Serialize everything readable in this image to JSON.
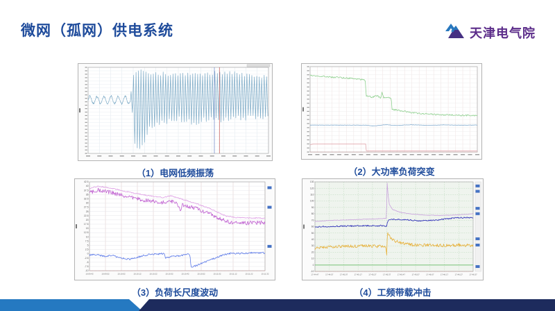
{
  "slide": {
    "title": "微网（孤网）供电系统",
    "title_color": "#1e4b9b",
    "logo": {
      "text": "天津电气院",
      "text_color": "#5c2d8a",
      "icon": "mountain-logo-icon",
      "icon_top_color": "#2878be",
      "icon_bottom_color": "#463083"
    },
    "footer": {
      "light_color": "#2579c1",
      "dark_color": "#1d2b5d"
    }
  },
  "figures": [
    {
      "caption": "（1）电网低频振荡"
    },
    {
      "caption": "（2）大功率负荷突变"
    },
    {
      "caption": "（3）负荷长尺度波动"
    },
    {
      "caption": "（4）工频带载冲击"
    }
  ],
  "chart_data": [
    {
      "type": "line",
      "title": "电网低频振荡",
      "ylim": [
        0,
        100
      ],
      "plot_bg": "#ffffff",
      "grid": {
        "v": 17,
        "h": 26,
        "vcolor": "#dfe7ee",
        "hcolor": "#e9eef3"
      },
      "cursors": [
        {
          "x": 0.7,
          "color": "#6b84c8"
        },
        {
          "x": 0.728,
          "color": "#c0504d"
        }
      ],
      "corner_tab": true,
      "series": [
        {
          "name": "grid-frequency-waveform",
          "color": "#79a8c5",
          "mode": "osc",
          "pre": {
            "until": 0.235,
            "center": 62,
            "amp": 5,
            "cycles": 6
          },
          "env_top": [
            [
              0.235,
              70
            ],
            [
              0.245,
              88
            ],
            [
              0.26,
              93
            ],
            [
              0.28,
              96
            ],
            [
              0.32,
              93
            ],
            [
              0.45,
              92
            ],
            [
              0.6,
              91
            ],
            [
              0.75,
              94
            ],
            [
              0.9,
              91
            ],
            [
              1,
              89
            ]
          ],
          "env_bot": [
            [
              0.235,
              45
            ],
            [
              0.245,
              18
            ],
            [
              0.26,
              3
            ],
            [
              0.285,
              6
            ],
            [
              0.305,
              14
            ],
            [
              0.325,
              30
            ],
            [
              0.36,
              34
            ],
            [
              0.42,
              37
            ],
            [
              0.5,
              40
            ],
            [
              0.58,
              36
            ],
            [
              0.66,
              41
            ],
            [
              0.74,
              38
            ],
            [
              0.84,
              41
            ],
            [
              1,
              44
            ]
          ],
          "cycles": 56
        }
      ]
    },
    {
      "type": "line",
      "title": "大功率负荷突变",
      "ylim": [
        0,
        100
      ],
      "plot_bg": "#ffffff",
      "grid": {
        "v": 24,
        "h": 22,
        "vcolor": "#efe0e0",
        "hcolor": "#ececec"
      },
      "baseline_color": "#cc8f8f",
      "series": [
        {
          "name": "generator-power",
          "color": "#8fd08f",
          "mode": "noisy",
          "noise": 0.9,
          "points": [
            [
              0,
              90
            ],
            [
              0.06,
              89
            ],
            [
              0.12,
              88
            ],
            [
              0.2,
              87
            ],
            [
              0.27,
              86
            ],
            [
              0.33,
              84
            ],
            [
              0.335,
              66
            ],
            [
              0.37,
              64
            ],
            [
              0.4,
              66
            ],
            [
              0.425,
              63
            ],
            [
              0.43,
              70
            ],
            [
              0.44,
              64
            ],
            [
              0.485,
              63
            ],
            [
              0.49,
              50
            ],
            [
              0.55,
              48
            ],
            [
              0.62,
              46
            ],
            [
              0.7,
              44.5
            ],
            [
              0.8,
              43.5
            ],
            [
              0.9,
              43
            ],
            [
              1,
              42.5
            ]
          ]
        },
        {
          "name": "frequency",
          "color": "#86aed0",
          "mode": "noisy",
          "noise": 0.25,
          "points": [
            [
              0,
              31.5
            ],
            [
              0.33,
              31.5
            ],
            [
              0.38,
              30.5
            ],
            [
              0.45,
              32
            ],
            [
              0.52,
              31
            ],
            [
              0.6,
              32
            ],
            [
              0.7,
              31.2
            ],
            [
              0.8,
              31.8
            ],
            [
              0.9,
              31.3
            ],
            [
              1,
              31.6
            ]
          ]
        },
        {
          "name": "load-step",
          "color": "#e2a7ad",
          "mode": "line",
          "points": [
            [
              0,
              8.5
            ],
            [
              0.02,
              9.5
            ],
            [
              0.332,
              9.5
            ],
            [
              0.336,
              1.5
            ],
            [
              1,
              1.5
            ]
          ]
        }
      ]
    },
    {
      "type": "line",
      "title": "负荷长尺度波动",
      "ylim": [
        -10,
        42.5
      ],
      "plot_bg": "#ffffff",
      "yticks": [
        "42.5",
        "40",
        "37.5",
        "35",
        "32.5",
        "30",
        "27.5",
        "25",
        "22.5",
        "20",
        "17.5",
        "15",
        "12.5",
        "10",
        "7.5",
        "5",
        "2.5",
        "0",
        "-2.5",
        "-5",
        "-7.5",
        "-10"
      ],
      "xticks": [
        "10:09:42",
        "10:09:52",
        "10:10:02",
        "10:10:12",
        "10:10:22",
        "10:10:32",
        "10:10:42",
        "10:10:52",
        "10:11:02",
        "10:11:12",
        "10:11:22",
        "10:11:32"
      ],
      "grid": {
        "vcolor": "#dcc6c6",
        "hcolor": "#e4e4ea"
      },
      "baseline_color": "#cc8f8f",
      "right_markers": {
        "positions": [
          0.05,
          0.27,
          0.71
        ],
        "color": "#4472c4"
      },
      "series": [
        {
          "name": "load-envelope",
          "color": "#dd9ce4",
          "mode": "noisy",
          "noise": 0.3,
          "points": [
            [
              0,
              38.5
            ],
            [
              0.05,
              40
            ],
            [
              0.12,
              38.8
            ],
            [
              0.2,
              37
            ],
            [
              0.3,
              35
            ],
            [
              0.38,
              33.8
            ],
            [
              0.42,
              33.2
            ],
            [
              0.46,
              34.3
            ],
            [
              0.52,
              32.5
            ],
            [
              0.6,
              30
            ],
            [
              0.68,
              27
            ],
            [
              0.74,
              24
            ],
            [
              0.78,
              22.3
            ],
            [
              0.84,
              21.4
            ],
            [
              1,
              21
            ]
          ]
        },
        {
          "name": "load-instant",
          "color": "#bf5fd0",
          "mode": "noisy",
          "noise": 1.2,
          "points": [
            [
              0,
              36
            ],
            [
              0.05,
              37.8
            ],
            [
              0.12,
              36.3
            ],
            [
              0.2,
              34.2
            ],
            [
              0.3,
              32
            ],
            [
              0.38,
              30.8
            ],
            [
              0.42,
              30.5
            ],
            [
              0.46,
              31.5
            ],
            [
              0.5,
              29.5
            ],
            [
              0.52,
              26
            ],
            [
              0.53,
              29
            ],
            [
              0.6,
              27
            ],
            [
              0.68,
              24
            ],
            [
              0.74,
              21
            ],
            [
              0.78,
              19
            ],
            [
              0.84,
              18.2
            ],
            [
              1,
              18.4
            ]
          ]
        },
        {
          "name": "power-delta",
          "color": "#5b79e8",
          "mode": "noisy",
          "noise": 0.5,
          "points": [
            [
              0,
              -0.6
            ],
            [
              0.04,
              -0.4
            ],
            [
              0.08,
              -1.4
            ],
            [
              0.13,
              -0.9
            ],
            [
              0.18,
              -2.6
            ],
            [
              0.23,
              -3.3
            ],
            [
              0.27,
              -2.2
            ],
            [
              0.3,
              -1.2
            ],
            [
              0.34,
              -0.4
            ],
            [
              0.38,
              -0.2
            ],
            [
              0.42,
              0.2
            ],
            [
              0.428,
              0.3
            ],
            [
              0.432,
              -2.6
            ],
            [
              0.47,
              -1.6
            ],
            [
              0.52,
              -1
            ],
            [
              0.56,
              -0.4
            ],
            [
              0.572,
              -0.2
            ],
            [
              0.578,
              -8.2
            ],
            [
              0.62,
              -6.5
            ],
            [
              0.68,
              -4
            ],
            [
              0.73,
              -2
            ],
            [
              0.77,
              -0.4
            ],
            [
              0.8,
              0.2
            ],
            [
              0.9,
              0.3
            ],
            [
              0.93,
              0.6
            ],
            [
              1,
              0.6
            ]
          ]
        }
      ]
    },
    {
      "type": "line",
      "title": "工频带载冲击",
      "ylim": [
        -10,
        130
      ],
      "plot_bg": "#eff4ee",
      "yticks": [
        "130",
        "120",
        "110",
        "100",
        "90",
        "80",
        "70",
        "60",
        "50",
        "40",
        "30",
        "20",
        "10",
        "0",
        "-10"
      ],
      "xticks": [
        "17:44:47",
        "17:44:57",
        "17:45:07",
        "17:45:17",
        "17:45:27",
        "17:45:37",
        "17:45:47",
        "17:45:57",
        "17:46:07",
        "17:46:17",
        "17:46:27",
        "17:46:37"
      ],
      "grid": {
        "vcolor": "#b9d8b9",
        "hcolor": "#b9d8b9",
        "dashed": true
      },
      "baseline_color": "#cc8f8f",
      "right_markers": {
        "positions": [
          0.03,
          0.09,
          0.28,
          0.34,
          0.62,
          0.69,
          0.93
        ],
        "color": "#4472c4",
        "strip": true
      },
      "series": [
        {
          "name": "voltage",
          "color": "#c9a2dd",
          "mode": "noisy",
          "noise": 0.4,
          "points": [
            [
              0,
              68
            ],
            [
              0.08,
              69.5
            ],
            [
              0.18,
              70.5
            ],
            [
              0.3,
              71.5
            ],
            [
              0.42,
              72.5
            ],
            [
              0.452,
              73
            ],
            [
              0.456,
              130
            ],
            [
              0.462,
              110
            ],
            [
              0.47,
              95
            ],
            [
              0.49,
              87
            ],
            [
              0.53,
              83
            ],
            [
              0.6,
              80
            ],
            [
              0.7,
              78
            ],
            [
              0.8,
              77.5
            ],
            [
              0.9,
              78.5
            ],
            [
              1,
              80
            ]
          ]
        },
        {
          "name": "frequency",
          "color": "#2a2ab8",
          "mode": "noisy",
          "noise": 1.0,
          "points": [
            [
              0,
              59.5
            ],
            [
              0.1,
              60.5
            ],
            [
              0.2,
              61
            ],
            [
              0.3,
              61.5
            ],
            [
              0.43,
              61.5
            ],
            [
              0.452,
              60
            ],
            [
              0.458,
              66
            ],
            [
              0.465,
              70.5
            ],
            [
              0.5,
              71.5
            ],
            [
              0.56,
              71
            ],
            [
              0.62,
              70
            ],
            [
              0.67,
              69
            ],
            [
              0.72,
              70
            ],
            [
              0.78,
              70.5
            ],
            [
              0.84,
              72.5
            ],
            [
              0.9,
              74
            ],
            [
              1,
              74
            ]
          ]
        },
        {
          "name": "current",
          "color": "#e7b13c",
          "mode": "noisy",
          "noise": 2.4,
          "points": [
            [
              0,
              26
            ],
            [
              0.06,
              28
            ],
            [
              0.14,
              29
            ],
            [
              0.24,
              29.5
            ],
            [
              0.34,
              30
            ],
            [
              0.42,
              29
            ],
            [
              0.448,
              27
            ],
            [
              0.454,
              16
            ],
            [
              0.458,
              52
            ],
            [
              0.47,
              45
            ],
            [
              0.5,
              38
            ],
            [
              0.55,
              34
            ],
            [
              0.62,
              31.5
            ],
            [
              0.72,
              31
            ],
            [
              0.82,
              30.5
            ],
            [
              0.92,
              31.5
            ],
            [
              1,
              30.5
            ]
          ]
        },
        {
          "name": "zero-reference",
          "color": "#66bb66",
          "mode": "line",
          "points": [
            [
              0,
              0
            ],
            [
              1,
              0
            ]
          ]
        }
      ]
    }
  ]
}
